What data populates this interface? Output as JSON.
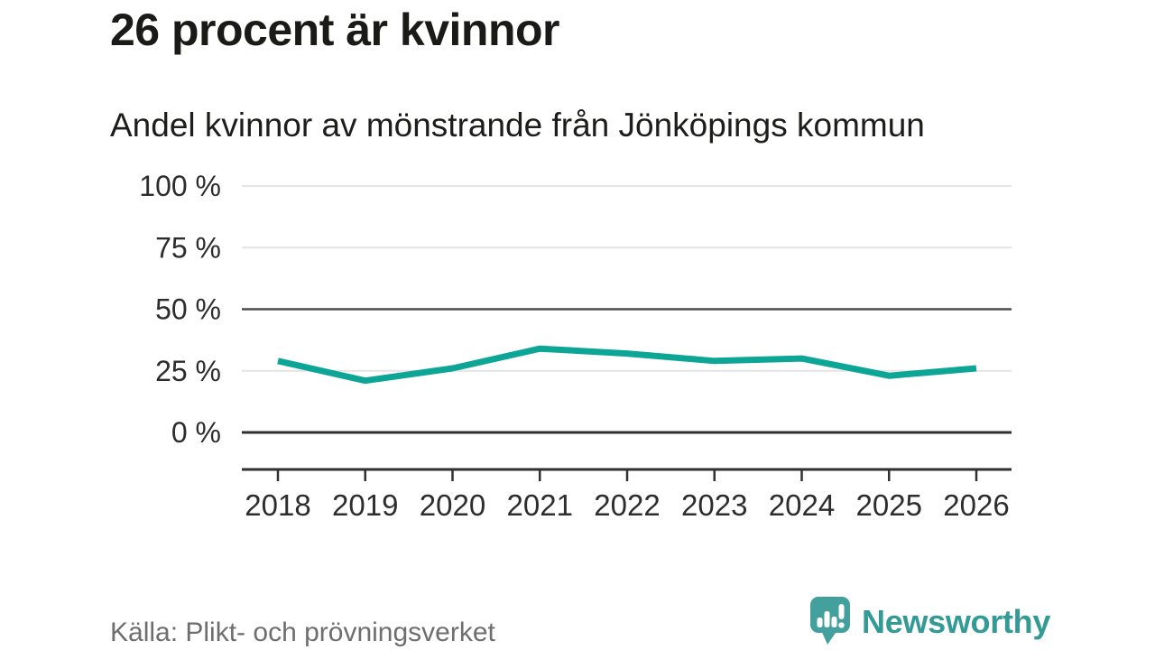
{
  "header": {
    "title": "26 procent är kvinnor",
    "subtitle": "Andel kvinnor av mönstrande från Jönköpings kommun"
  },
  "chart_data": {
    "type": "line",
    "title": "26 procent är kvinnor",
    "subtitle": "Andel kvinnor av mönstrande från Jönköpings kommun",
    "categories": [
      2018,
      2019,
      2020,
      2021,
      2022,
      2023,
      2024,
      2025,
      2026
    ],
    "series": [
      {
        "name": "Andel kvinnor av mönstrande",
        "values": [
          29,
          21,
          26,
          34,
          32,
          29,
          30,
          23,
          26
        ],
        "color": "#0da696"
      }
    ],
    "unit": "%",
    "ylim": [
      0,
      100
    ],
    "yticks": [
      0,
      25,
      50,
      75,
      100
    ],
    "ytick_labels": [
      "0 %",
      "25 %",
      "50 %",
      "75 %",
      "100 %"
    ],
    "xlabel": "",
    "ylabel": "",
    "grid": true,
    "emphasized_gridlines": [
      50
    ],
    "baseline_gridline": 0,
    "legend": false
  },
  "footer": {
    "source": "Källa: Plikt- och prövningsverket",
    "brand_name": "Newsworthy"
  },
  "colors": {
    "line": "#0da696",
    "grid_light": "#e4e4e4",
    "grid_emphasis": "#4d4d4d",
    "axis_dark": "#303030",
    "tick_text": "#2d2d2d",
    "title_text": "#1a1a18",
    "source_text": "#6e6e6e",
    "brand_teal": "#349a95",
    "logo_bubble": "#43a09c"
  }
}
